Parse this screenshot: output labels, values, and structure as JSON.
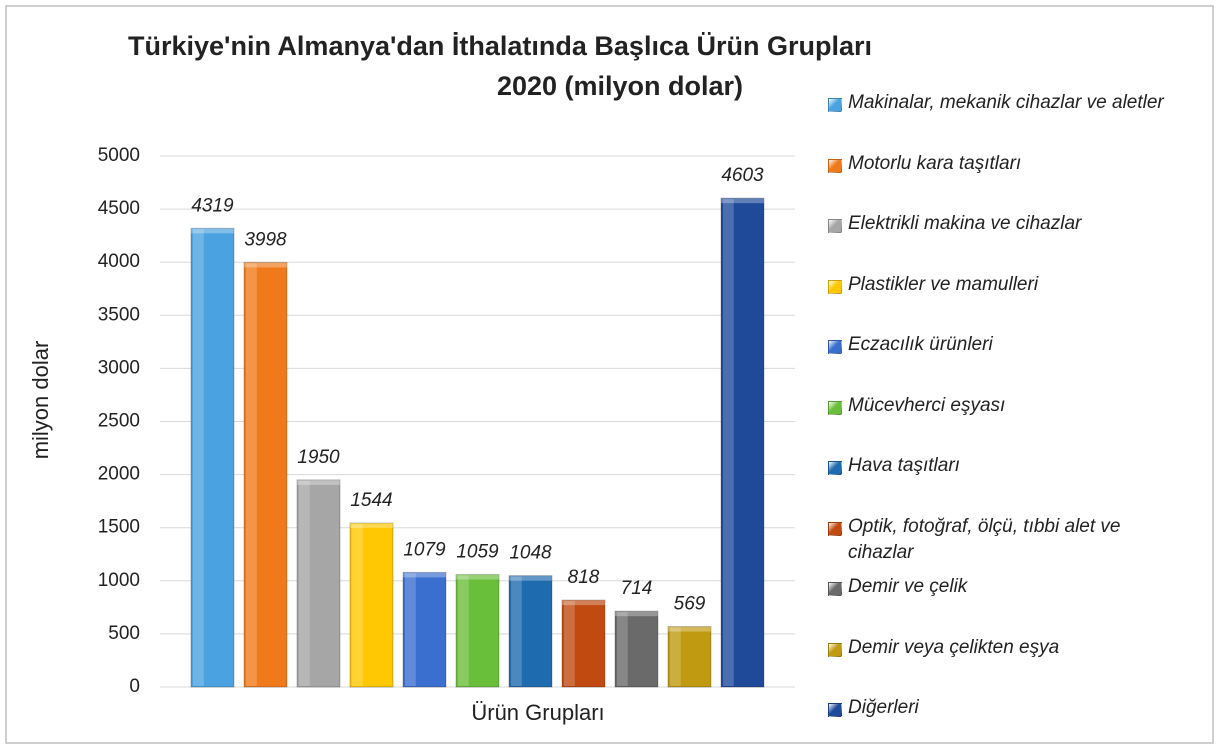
{
  "chart_data": {
    "type": "bar",
    "title": "Türkiye'nin Almanya'dan İthalatında Başlıca Ürün Grupları",
    "subtitle": "2020 (milyon dolar)",
    "ylabel": "milyon dolar",
    "categories": [
      "Ürün Grupları"
    ],
    "series": [
      {
        "name": "Makinalar, mekanik cihazlar ve aletler",
        "color": "#4aa3e0",
        "values": [
          4319
        ]
      },
      {
        "name": "Motorlu kara taşıtları",
        "color": "#f07a1a",
        "values": [
          3998
        ]
      },
      {
        "name": "Elektrikli makina ve cihazlar",
        "color": "#a6a6a6",
        "values": [
          1950
        ]
      },
      {
        "name": "Plastikler ve mamulleri",
        "color": "#ffc800",
        "values": [
          1544
        ]
      },
      {
        "name": "Eczacılık ürünleri",
        "color": "#3a6fd0",
        "values": [
          1079
        ]
      },
      {
        "name": "Mücevherci eşyası",
        "color": "#6abf3a",
        "values": [
          1059
        ]
      },
      {
        "name": "Hava taşıtları",
        "color": "#1f6bb0",
        "values": [
          1048
        ]
      },
      {
        "name": "Optik, fotoğraf, ölçü, tıbbi alet ve cihazlar",
        "color": "#c04a10",
        "values": [
          818
        ]
      },
      {
        "name": "Demir ve çelik",
        "color": "#6a6a6a",
        "values": [
          714
        ]
      },
      {
        "name": "Demir veya çelikten eşya",
        "color": "#c09a10",
        "values": [
          569
        ]
      },
      {
        "name": "Diğerleri",
        "color": "#1f4a9a",
        "values": [
          4603
        ]
      }
    ],
    "ylim": [
      0,
      5000
    ],
    "yticks": [
      0,
      500,
      1000,
      1500,
      2000,
      2500,
      3000,
      3500,
      4000,
      4500,
      5000
    ],
    "grid": true,
    "legend": "right"
  }
}
